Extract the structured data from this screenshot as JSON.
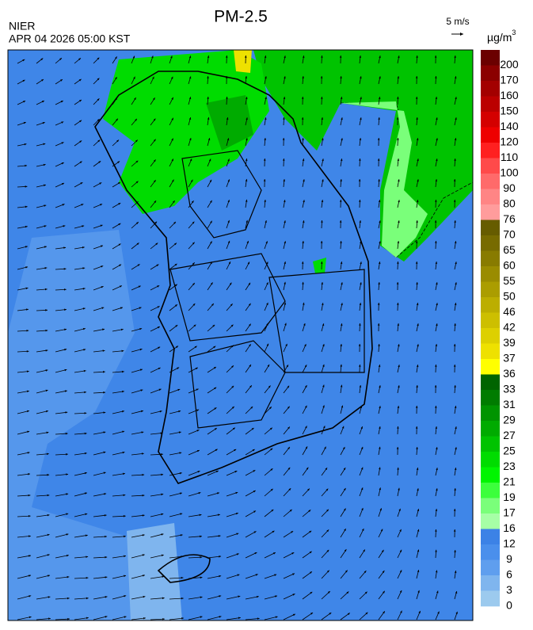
{
  "header": {
    "title": "PM-2.5",
    "agency": "NIER",
    "datetime": "APR 04 2026 05:00 KST"
  },
  "wind_scale": {
    "label": "5 m/s"
  },
  "legend": {
    "unit": "µg/m",
    "unit_exponent": "3",
    "levels": [
      {
        "label": "200",
        "color": "#6b0000"
      },
      {
        "label": "170",
        "color": "#8b0000"
      },
      {
        "label": "160",
        "color": "#a30000"
      },
      {
        "label": "150",
        "color": "#bb0000"
      },
      {
        "label": "140",
        "color": "#d40000"
      },
      {
        "label": "120",
        "color": "#ee0000"
      },
      {
        "label": "110",
        "color": "#ff2020"
      },
      {
        "label": "100",
        "color": "#ff4a4a"
      },
      {
        "label": "90",
        "color": "#ff6a6a"
      },
      {
        "label": "80",
        "color": "#ff8585"
      },
      {
        "label": "76",
        "color": "#ff9c9c"
      },
      {
        "label": "70",
        "color": "#665c00"
      },
      {
        "label": "65",
        "color": "#776b00"
      },
      {
        "label": "60",
        "color": "#887b00"
      },
      {
        "label": "55",
        "color": "#9a8c00"
      },
      {
        "label": "50",
        "color": "#ab9d00"
      },
      {
        "label": "46",
        "color": "#bcae00"
      },
      {
        "label": "42",
        "color": "#cdbf00"
      },
      {
        "label": "39",
        "color": "#ddd000"
      },
      {
        "label": "37",
        "color": "#eee100"
      },
      {
        "label": "36",
        "color": "#ffff00"
      },
      {
        "label": "33",
        "color": "#006400"
      },
      {
        "label": "31",
        "color": "#007c00"
      },
      {
        "label": "29",
        "color": "#009400"
      },
      {
        "label": "27",
        "color": "#00ab00"
      },
      {
        "label": "25",
        "color": "#00c300"
      },
      {
        "label": "23",
        "color": "#00dc00"
      },
      {
        "label": "21",
        "color": "#00f500"
      },
      {
        "label": "19",
        "color": "#3cff3c"
      },
      {
        "label": "17",
        "color": "#7aff7a"
      },
      {
        "label": "16",
        "color": "#a6ffa6"
      },
      {
        "label": "12",
        "color": "#3c82e6"
      },
      {
        "label": "9",
        "color": "#4a8fec"
      },
      {
        "label": "6",
        "color": "#5f9eee"
      },
      {
        "label": "3",
        "color": "#7fb5ee"
      },
      {
        "label": "0",
        "color": "#9ccaee"
      }
    ]
  }
}
